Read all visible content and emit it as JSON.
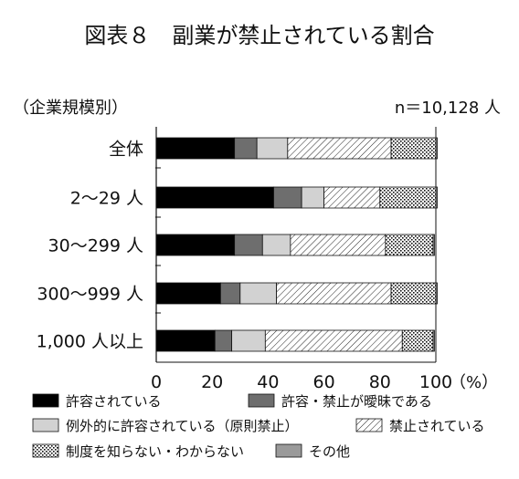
{
  "chart_data": {
    "type": "bar",
    "orientation": "horizontal-stacked-percent",
    "title": "図表８　副業が禁止されている割合",
    "category_axis_label": "（企業規模別）",
    "sample_note": "n＝10,128 人",
    "xlim": [
      0,
      100
    ],
    "x_ticks": [
      "0",
      "20",
      "40",
      "60",
      "80",
      "100"
    ],
    "x_unit": "（%）",
    "categories": [
      "全体",
      "2～29 人",
      "30～299 人",
      "300～999 人",
      "1,000 人以上"
    ],
    "series": [
      {
        "name": "許容されている",
        "color": "#000000",
        "pattern": "solid",
        "values": [
          28,
          42,
          28,
          23,
          21
        ]
      },
      {
        "name": "許容・禁止が曖昧である",
        "color": "#6e6e6e",
        "pattern": "solid",
        "values": [
          8,
          10,
          10,
          7,
          6
        ]
      },
      {
        "name": "例外的に許容されている（原則禁止）",
        "color": "#d2d2d2",
        "pattern": "solid",
        "values": [
          11,
          8,
          10,
          13,
          12
        ]
      },
      {
        "name": "禁止されている",
        "color": "#ffffff",
        "pattern": "diagonal",
        "values": [
          37,
          20,
          34,
          41,
          49
        ]
      },
      {
        "name": "制度を知らない・わからない",
        "color": "#ffffff",
        "pattern": "dots",
        "values": [
          16,
          20,
          17,
          16,
          11
        ]
      },
      {
        "name": "その他",
        "color": "#9a9a9a",
        "pattern": "solid",
        "values": [
          0.5,
          0.5,
          0.5,
          0.5,
          0.5
        ]
      }
    ],
    "legend_position": "bottom"
  }
}
